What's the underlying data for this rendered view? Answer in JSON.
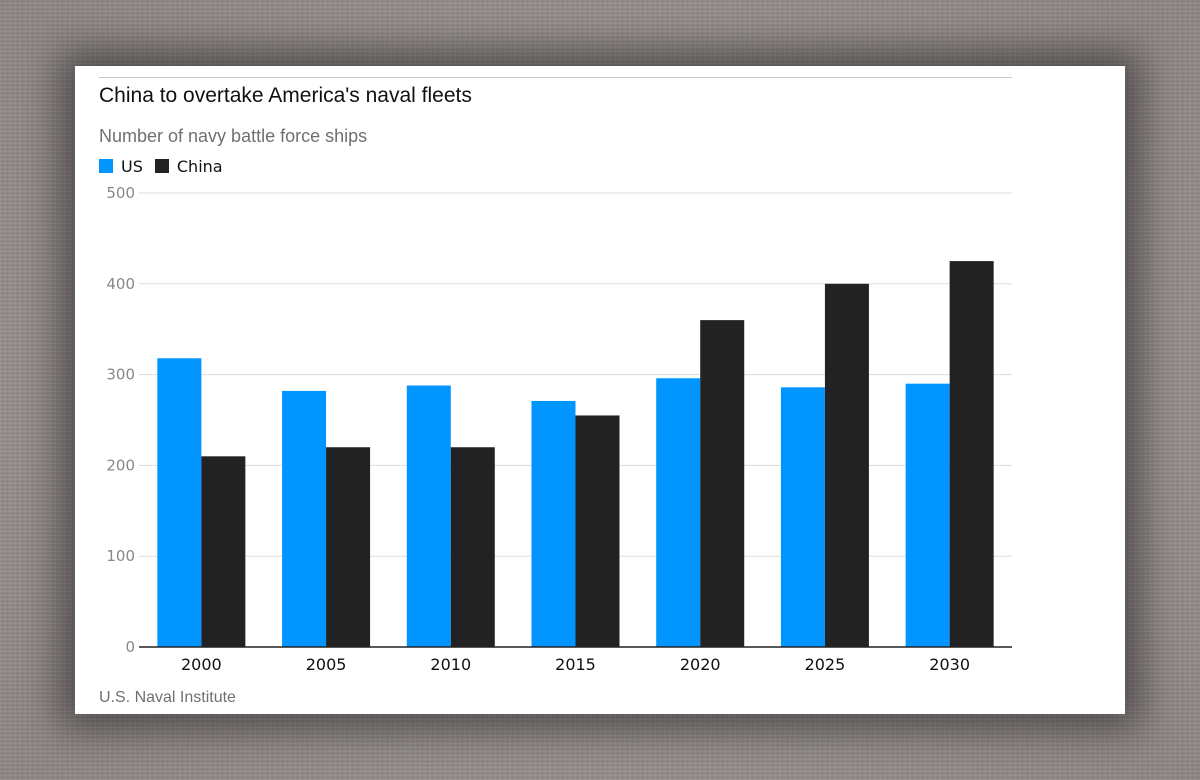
{
  "title": "China to overtake America's naval fleets",
  "subtitle": "Number of navy battle force ships",
  "source": "U.S. Naval Institute",
  "colors": {
    "US": "#0095ff",
    "China": "#222222",
    "grid": "#dddddd",
    "axis": "#222222"
  },
  "legend": [
    {
      "label": "US",
      "color": "#0095ff"
    },
    {
      "label": "China",
      "color": "#222222"
    }
  ],
  "chart_data": {
    "type": "bar",
    "title": "China to overtake America's naval fleets",
    "subtitle": "Number of navy battle force ships",
    "categories": [
      "2000",
      "2005",
      "2010",
      "2015",
      "2020",
      "2025",
      "2030"
    ],
    "series": [
      {
        "name": "US",
        "values": [
          318,
          282,
          288,
          271,
          296,
          286,
          290
        ]
      },
      {
        "name": "China",
        "values": [
          210,
          220,
          220,
          255,
          360,
          400,
          425
        ]
      }
    ],
    "ylim": [
      0,
      500
    ],
    "yticks": [
      0,
      100,
      200,
      300,
      400,
      500
    ],
    "grid": true,
    "legend_position": "top-left",
    "xlabel": "",
    "ylabel": ""
  }
}
